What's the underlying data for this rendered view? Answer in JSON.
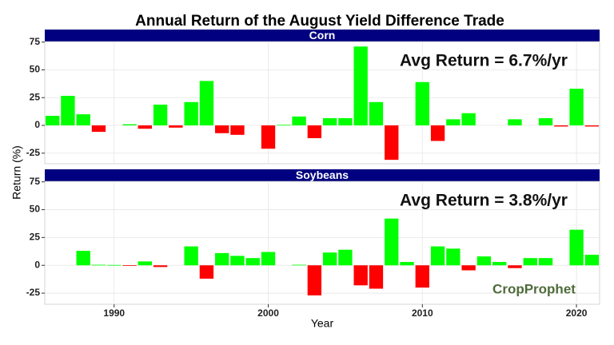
{
  "figure": {
    "title": "Annual Return of the August Yield Difference Trade",
    "x_label": "Year",
    "y_label": "Return (%)",
    "logo": "CropProphet"
  },
  "chart_data": [
    {
      "type": "bar",
      "panel_title": "Corn",
      "annotation": "Avg Return = 6.7%/yr",
      "x": [
        1986,
        1987,
        1988,
        1989,
        1990,
        1991,
        1992,
        1993,
        1994,
        1995,
        1996,
        1997,
        1998,
        1999,
        2000,
        2001,
        2002,
        2003,
        2004,
        2005,
        2006,
        2007,
        2008,
        2009,
        2010,
        2011,
        2012,
        2013,
        2014,
        2015,
        2016,
        2017,
        2018,
        2019,
        2020,
        2021
      ],
      "values": [
        8.6,
        26.6,
        10,
        -5.8,
        null,
        1,
        -3,
        18.7,
        -2,
        21,
        40,
        -7,
        -8.5,
        null,
        -21,
        0.5,
        8,
        -11.5,
        6.5,
        6.5,
        71,
        21,
        -31,
        null,
        39,
        -14,
        5.5,
        11,
        null,
        null,
        5.5,
        null,
        6.5,
        -1,
        33,
        -1
      ],
      "positive_color": "#00ff00",
      "negative_color": "#ff0000",
      "xlim": [
        1985.5,
        2021.5
      ],
      "ylim": [
        -34.5,
        75.5
      ],
      "yticks": [
        -25,
        0,
        25,
        50,
        75
      ],
      "grid": true
    },
    {
      "type": "bar",
      "panel_title": "Soybeans",
      "annotation": "Avg Return = 3.8%/yr",
      "x": [
        1986,
        1987,
        1988,
        1989,
        1990,
        1991,
        1992,
        1993,
        1994,
        1995,
        1996,
        1997,
        1998,
        1999,
        2000,
        2001,
        2002,
        2003,
        2004,
        2005,
        2006,
        2007,
        2008,
        2009,
        2010,
        2011,
        2012,
        2013,
        2014,
        2015,
        2016,
        2017,
        2018,
        2019,
        2020,
        2021
      ],
      "values": [
        null,
        null,
        13,
        0.5,
        0.3,
        -0.5,
        3.5,
        -1.5,
        null,
        17,
        -12,
        11,
        8.5,
        6.5,
        12,
        null,
        0.5,
        -27,
        11.5,
        14,
        -18,
        -21,
        42,
        3,
        -20,
        17,
        15,
        -4.5,
        8,
        3,
        -2.5,
        6.5,
        6.5,
        null,
        32,
        9.5
      ],
      "positive_color": "#00ff00",
      "negative_color": "#ff0000",
      "xlim": [
        1985.5,
        2021.5
      ],
      "xticks": [
        1990,
        2000,
        2010,
        2020
      ],
      "ylim": [
        -35,
        75.5
      ],
      "yticks": [
        -25,
        0,
        25,
        50,
        75
      ],
      "grid": true
    }
  ]
}
